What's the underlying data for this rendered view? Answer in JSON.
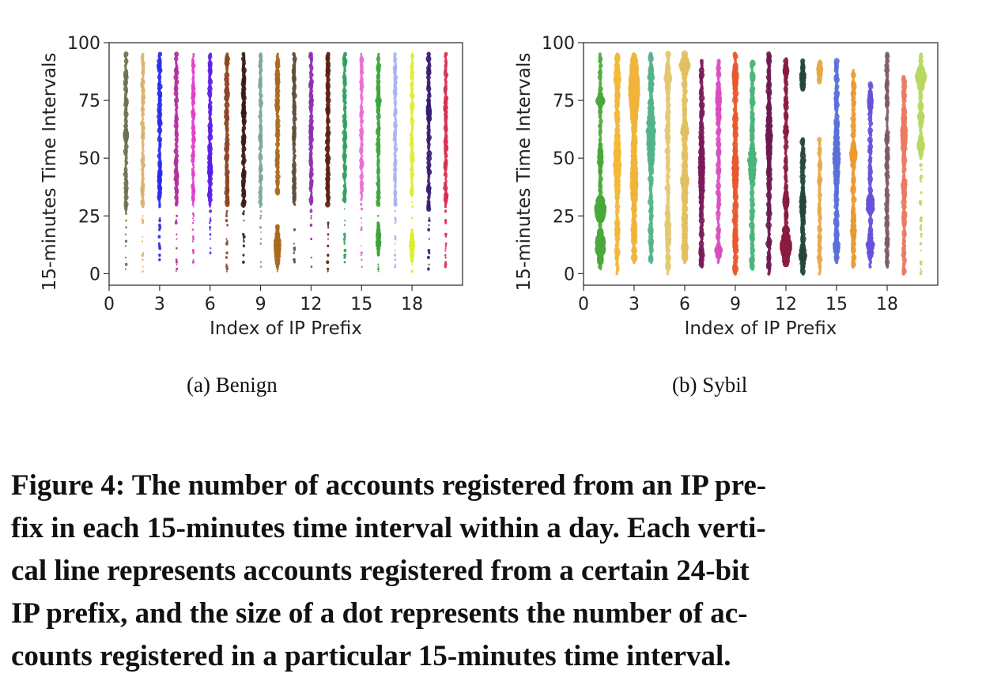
{
  "chart_data": [
    {
      "type": "scatter",
      "panel_label": "(a)  Benign",
      "xlabel": "Index of IP Prefix",
      "ylabel": "15-minutes Time Intervals",
      "xlim": [
        0,
        21
      ],
      "ylim": [
        -5,
        100
      ],
      "xticks": [
        0,
        3,
        6,
        9,
        12,
        15,
        18
      ],
      "yticks": [
        0,
        25,
        50,
        75,
        100
      ],
      "grid": false,
      "series": [
        {
          "x": 1,
          "color": "#6f6f4f",
          "ymin": 0,
          "ymax": 95,
          "dense_from": 28,
          "size": 2.6,
          "blobs": [
            [
              60,
              3.6,
              8
            ]
          ]
        },
        {
          "x": 2,
          "color": "#d8b06a",
          "ymin": 0,
          "ymax": 95,
          "dense_from": 30,
          "size": 2.4,
          "blobs": []
        },
        {
          "x": 3,
          "color": "#2a2ae8",
          "ymin": 0,
          "ymax": 95,
          "dense_from": 32,
          "size": 2.8,
          "blobs": [
            [
              40,
              3.4,
              6
            ]
          ]
        },
        {
          "x": 4,
          "color": "#b12a9a",
          "ymin": 0,
          "ymax": 95,
          "dense_from": 30,
          "size": 2.6,
          "blobs": []
        },
        {
          "x": 5,
          "color": "#e23ac8",
          "ymin": 0,
          "ymax": 95,
          "dense_from": 30,
          "size": 2.4,
          "blobs": []
        },
        {
          "x": 6,
          "color": "#5a1ee6",
          "ymin": 0,
          "ymax": 95,
          "dense_from": 30,
          "size": 2.8,
          "blobs": [
            [
              45,
              3.6,
              10
            ]
          ]
        },
        {
          "x": 7,
          "color": "#8a4420",
          "ymin": 0,
          "ymax": 95,
          "dense_from": 30,
          "size": 2.8,
          "blobs": []
        },
        {
          "x": 8,
          "color": "#3b1a12",
          "ymin": 0,
          "ymax": 95,
          "dense_from": 30,
          "size": 2.8,
          "blobs": [
            [
              70,
              3.4,
              8
            ]
          ]
        },
        {
          "x": 9,
          "color": "#7aa690",
          "ymin": 0,
          "ymax": 95,
          "dense_from": 30,
          "size": 2.4,
          "blobs": []
        },
        {
          "x": 10,
          "color": "#a86a1e",
          "ymin": 0,
          "ymax": 95,
          "dense_from": 35,
          "size": 2.8,
          "blobs": [
            [
              12,
              4.6,
              18
            ],
            [
              85,
              3.4,
              10
            ]
          ]
        },
        {
          "x": 11,
          "color": "#5c4a34",
          "ymin": 0,
          "ymax": 95,
          "dense_from": 30,
          "size": 2.6,
          "blobs": []
        },
        {
          "x": 12,
          "color": "#8e2cb0",
          "ymin": 0,
          "ymax": 95,
          "dense_from": 30,
          "size": 2.6,
          "blobs": []
        },
        {
          "x": 13,
          "color": "#5a1d10",
          "ymin": 0,
          "ymax": 95,
          "dense_from": 30,
          "size": 2.8,
          "blobs": []
        },
        {
          "x": 14,
          "color": "#2e9e5a",
          "ymin": 0,
          "ymax": 95,
          "dense_from": 32,
          "size": 2.6,
          "blobs": []
        },
        {
          "x": 15,
          "color": "#e66ad8",
          "ymin": 0,
          "ymax": 95,
          "dense_from": 32,
          "size": 2.4,
          "blobs": []
        },
        {
          "x": 16,
          "color": "#3aa43a",
          "ymin": 0,
          "ymax": 95,
          "dense_from": 30,
          "size": 2.6,
          "blobs": [
            [
              75,
              3.8,
              10
            ],
            [
              15,
              3.6,
              14
            ]
          ]
        },
        {
          "x": 17,
          "color": "#a4b4f0",
          "ymin": 0,
          "ymax": 95,
          "dense_from": 30,
          "size": 2.4,
          "blobs": []
        },
        {
          "x": 18,
          "color": "#dcee2e",
          "ymin": 0,
          "ymax": 95,
          "dense_from": 34,
          "size": 2.6,
          "blobs": [
            [
              12,
              3.6,
              14
            ]
          ]
        },
        {
          "x": 19,
          "color": "#3a1a72",
          "ymin": 0,
          "ymax": 95,
          "dense_from": 28,
          "size": 2.8,
          "blobs": [
            [
              70,
              3.4,
              10
            ]
          ]
        },
        {
          "x": 20,
          "color": "#d62a4e",
          "ymin": 0,
          "ymax": 95,
          "dense_from": 30,
          "size": 2.6,
          "blobs": []
        }
      ]
    },
    {
      "type": "scatter",
      "panel_label": "(b)  Sybil",
      "xlabel": "Index of IP Prefix",
      "ylabel": "15-minutes Time Intervals",
      "xlim": [
        0,
        21
      ],
      "ylim": [
        -5,
        100
      ],
      "xticks": [
        0,
        3,
        6,
        9,
        12,
        15,
        18
      ],
      "yticks": [
        0,
        25,
        50,
        75,
        100
      ],
      "grid": false,
      "series": [
        {
          "x": 1,
          "color": "#4aa83a",
          "ymin": 2,
          "ymax": 95,
          "dense_from": 2,
          "size": 2.6,
          "blobs": [
            [
              28,
              8.5,
              10
            ],
            [
              12,
              7,
              14
            ],
            [
              75,
              5.5,
              6
            ],
            [
              50,
              4.5,
              12
            ]
          ]
        },
        {
          "x": 2,
          "color": "#f2b838",
          "ymin": 0,
          "ymax": 95,
          "dense_from": 0,
          "size": 3.2,
          "blobs": [
            [
              48,
              5.2,
              30
            ],
            [
              85,
              4.6,
              12
            ]
          ]
        },
        {
          "x": 3,
          "color": "#f0b43a",
          "ymin": 5,
          "ymax": 95,
          "dense_from": 5,
          "size": 3.6,
          "blobs": [
            [
              80,
              7,
              30
            ],
            [
              40,
              5.2,
              30
            ]
          ]
        },
        {
          "x": 4,
          "color": "#52b488",
          "ymin": 5,
          "ymax": 95,
          "dense_from": 5,
          "size": 3.2,
          "blobs": [
            [
              60,
              6,
              30
            ],
            [
              85,
              4.6,
              10
            ]
          ]
        },
        {
          "x": 5,
          "color": "#e4c870",
          "ymin": 0,
          "ymax": 95,
          "dense_from": 0,
          "size": 3.2,
          "blobs": [
            [
              85,
              4.8,
              14
            ],
            [
              20,
              4.2,
              16
            ]
          ]
        },
        {
          "x": 6,
          "color": "#e2c060",
          "ymin": 5,
          "ymax": 95,
          "dense_from": 5,
          "size": 3.6,
          "blobs": [
            [
              90,
              6.5,
              8
            ],
            [
              62,
              6,
              6
            ],
            [
              40,
              5.4,
              12
            ],
            [
              12,
              4.8,
              10
            ]
          ]
        },
        {
          "x": 7,
          "color": "#7a1a5a",
          "ymin": 3,
          "ymax": 92,
          "dense_from": 3,
          "size": 3.2,
          "blobs": [
            [
              45,
              4.6,
              30
            ]
          ]
        },
        {
          "x": 8,
          "color": "#d84ec0",
          "ymin": 5,
          "ymax": 92,
          "dense_from": 5,
          "size": 3.0,
          "blobs": [
            [
              10,
              5.5,
              6
            ],
            [
              75,
              4.2,
              16
            ]
          ]
        },
        {
          "x": 9,
          "color": "#e8582e",
          "ymin": 0,
          "ymax": 95,
          "dense_from": 0,
          "size": 3.4,
          "blobs": [
            [
              45,
              4.8,
              20
            ],
            [
              85,
              4.6,
              10
            ]
          ]
        },
        {
          "x": 10,
          "color": "#4ab47a",
          "ymin": 2,
          "ymax": 92,
          "dense_from": 2,
          "size": 3.2,
          "blobs": [
            [
              48,
              6,
              16
            ]
          ]
        },
        {
          "x": 11,
          "color": "#6a1a50",
          "ymin": 0,
          "ymax": 95,
          "dense_from": 0,
          "size": 3.2,
          "blobs": [
            [
              60,
              4.6,
              30
            ]
          ]
        },
        {
          "x": 12,
          "color": "#8a1a3e",
          "ymin": 8,
          "ymax": 93,
          "dense_from": 8,
          "size": 2.8,
          "blobs": [
            [
              12,
              7,
              16
            ],
            [
              32,
              5,
              8
            ],
            [
              62,
              4.6,
              4
            ],
            [
              88,
              4.2,
              6
            ]
          ]
        },
        {
          "x": 13,
          "color": "#24483e",
          "ymin": 0,
          "ymax": 58,
          "dense_from": 0,
          "size": 3.2,
          "blobs": [
            [
              85,
              4.6,
              10
            ],
            [
              8,
              5,
              10
            ],
            [
              30,
              4.4,
              16
            ]
          ],
          "extra_range": [
            80,
            92
          ]
        },
        {
          "x": 14,
          "color": "#e8a848",
          "ymin": 0,
          "ymax": 58,
          "dense_from": 0,
          "size": 2.8,
          "blobs": [
            [
              88,
              4.4,
              8
            ]
          ],
          "extra_range": [
            83,
            92
          ]
        },
        {
          "x": 15,
          "color": "#5a70d8",
          "ymin": 5,
          "ymax": 92,
          "dense_from": 5,
          "size": 3.2,
          "blobs": [
            [
              50,
              5,
              30
            ],
            [
              12,
              4.6,
              10
            ]
          ]
        },
        {
          "x": 16,
          "color": "#ea9a30",
          "ymin": 3,
          "ymax": 88,
          "dense_from": 3,
          "size": 3.0,
          "blobs": [
            [
              52,
              5,
              10
            ],
            [
              20,
              4.2,
              14
            ]
          ]
        },
        {
          "x": 17,
          "color": "#6a50d8",
          "ymin": 3,
          "ymax": 82,
          "dense_from": 3,
          "size": 2.8,
          "blobs": [
            [
              30,
              6.5,
              8
            ],
            [
              12,
              5.5,
              10
            ],
            [
              75,
              5,
              8
            ]
          ]
        },
        {
          "x": 18,
          "color": "#7a5a60",
          "ymin": 3,
          "ymax": 95,
          "dense_from": 3,
          "size": 2.8,
          "blobs": []
        },
        {
          "x": 19,
          "color": "#ea7a60",
          "ymin": 0,
          "ymax": 85,
          "dense_from": 0,
          "size": 3.0,
          "blobs": [
            [
              60,
              5,
              20
            ],
            [
              38,
              4.2,
              6
            ]
          ]
        },
        {
          "x": 20,
          "color": "#b8d860",
          "ymin": 0,
          "ymax": 95,
          "dense_from": 52,
          "size": 3.2,
          "blobs": [
            [
              85,
              7,
              10
            ],
            [
              55,
              5.5,
              8
            ],
            [
              68,
              4.6,
              4
            ]
          ]
        }
      ]
    }
  ],
  "caption_lines": [
    "Figure 4: The number of accounts registered from an IP pre-",
    "fix in each 15-minutes time interval within a day. Each verti-",
    "cal line represents accounts registered from a certain 24-bit",
    "IP prefix, and the size of a dot represents the number of ac-",
    "counts registered in a particular 15-minutes time interval."
  ]
}
